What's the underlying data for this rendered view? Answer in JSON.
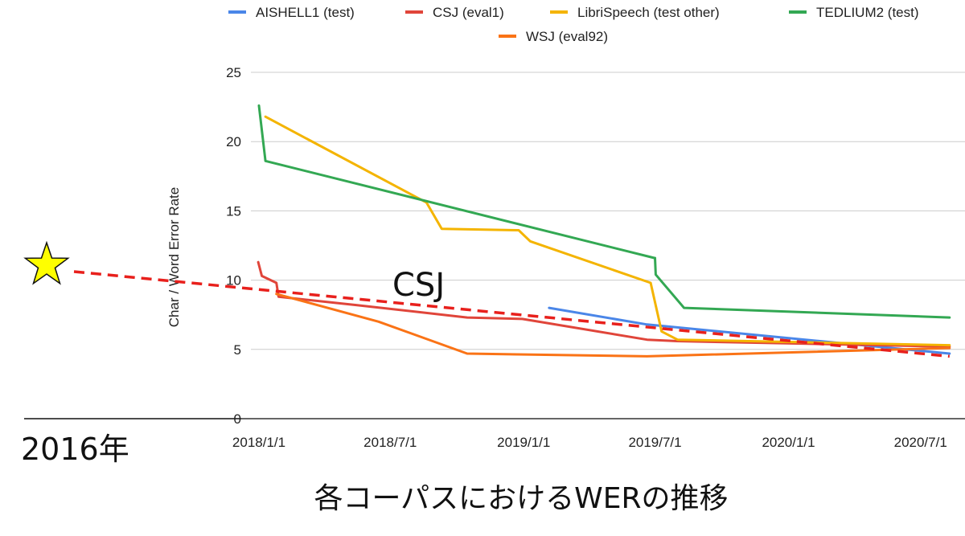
{
  "chart_data": {
    "type": "line",
    "ylabel": "Char / Word Error Rate",
    "ylim": [
      0,
      25
    ],
    "yticks": [
      "0",
      "5",
      "10",
      "15",
      "20",
      "25"
    ],
    "xticks": [
      {
        "label": "2018/1/1",
        "date": "2018-01-01"
      },
      {
        "label": "2018/7/1",
        "date": "2018-07-01"
      },
      {
        "label": "2019/1/1",
        "date": "2019-01-01"
      },
      {
        "label": "2019/7/1",
        "date": "2019-07-01"
      },
      {
        "label": "2020/1/1",
        "date": "2020-01-01"
      },
      {
        "label": "2020/7/1",
        "date": "2020-07-01"
      }
    ],
    "xlim": [
      "2017-12-20",
      "2020-08-10"
    ],
    "grid": true,
    "legend_position": "top",
    "series": [
      {
        "name": "AISHELL1 (test)",
        "color": "#4a86e8",
        "x": [
          "2019-02-05",
          "2019-06-20",
          "2020-08-10"
        ],
        "y": [
          8.0,
          6.8,
          4.7
        ]
      },
      {
        "name": "CSJ (eval1)",
        "color": "#e0453a",
        "x": [
          "2017-12-31",
          "2018-01-05",
          "2018-01-25",
          "2018-01-28",
          "2018-05-15",
          "2018-10-15",
          "2018-12-30",
          "2019-06-20",
          "2019-08-01",
          "2020-08-10"
        ],
        "y": [
          11.3,
          10.3,
          9.8,
          8.8,
          8.2,
          7.3,
          7.2,
          5.7,
          5.6,
          5.2
        ]
      },
      {
        "name": "LibriSpeech (test other)",
        "color": "#f4b400",
        "x": [
          "2018-01-10",
          "2018-08-20",
          "2018-09-10",
          "2018-12-25",
          "2019-01-10",
          "2019-06-25",
          "2019-07-10",
          "2019-08-01",
          "2020-08-10"
        ],
        "y": [
          21.8,
          15.6,
          13.7,
          13.6,
          12.8,
          9.8,
          6.3,
          5.7,
          5.3
        ]
      },
      {
        "name": "TEDLIUM2 (test)",
        "color": "#33a853",
        "x": [
          "2018-01-01",
          "2018-01-10",
          "2019-06-30",
          "2019-07-01",
          "2019-07-02",
          "2019-08-10",
          "2020-08-10"
        ],
        "y": [
          22.6,
          18.6,
          11.6,
          11.6,
          10.4,
          8.0,
          7.3
        ]
      },
      {
        "name": "WSJ (eval92)",
        "color": "#fa7316",
        "x": [
          "2018-01-25",
          "2018-06-15",
          "2018-10-15",
          "2019-06-20",
          "2020-08-10"
        ],
        "y": [
          9.0,
          7.0,
          4.7,
          4.5,
          5.1
        ]
      }
    ],
    "annotations": {
      "trend_line": {
        "label": "CSJ",
        "color": "#e8201c",
        "from": {
          "x": "2016-01-01",
          "y": 10.6
        },
        "to": {
          "x": "2020-08-10",
          "y": 4.5
        }
      },
      "start_year_label": "2016年",
      "star_marker": {
        "x": "2016-01-01",
        "y": 10.6,
        "color": "#ffff00"
      }
    },
    "caption": "各コーパスにおけるWERの推移"
  }
}
